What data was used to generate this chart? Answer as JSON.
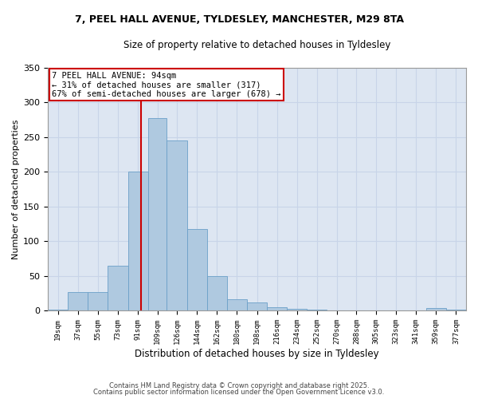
{
  "title_line1": "7, PEEL HALL AVENUE, TYLDESLEY, MANCHESTER, M29 8TA",
  "title_line2": "Size of property relative to detached houses in Tyldesley",
  "xlabel": "Distribution of detached houses by size in Tyldesley",
  "ylabel": "Number of detached properties",
  "bin_labels": [
    "19sqm",
    "37sqm",
    "55sqm",
    "73sqm",
    "91sqm",
    "109sqm",
    "126sqm",
    "144sqm",
    "162sqm",
    "180sqm",
    "198sqm",
    "216sqm",
    "234sqm",
    "252sqm",
    "270sqm",
    "288sqm",
    "305sqm",
    "323sqm",
    "341sqm",
    "359sqm",
    "377sqm"
  ],
  "bin_edges": [
    10,
    28,
    46,
    64,
    82,
    100,
    117,
    135,
    153,
    171,
    189,
    207,
    225,
    243,
    261,
    279,
    296,
    314,
    332,
    350,
    368,
    386
  ],
  "counts": [
    2,
    27,
    27,
    65,
    200,
    278,
    245,
    118,
    50,
    17,
    12,
    5,
    3,
    2,
    1,
    1,
    1,
    0,
    0,
    4,
    2
  ],
  "bar_color": "#afc9e0",
  "bar_edgecolor": "#6ba0c8",
  "grid_color": "#c8d4e8",
  "bg_color": "#dde6f2",
  "property_size": 94,
  "vline_color": "#cc0000",
  "annotation_text": "7 PEEL HALL AVENUE: 94sqm\n← 31% of detached houses are smaller (317)\n67% of semi-detached houses are larger (678) →",
  "annotation_box_color": "#cc0000",
  "footer_line1": "Contains HM Land Registry data © Crown copyright and database right 2025.",
  "footer_line2": "Contains public sector information licensed under the Open Government Licence v3.0.",
  "ylim": [
    0,
    350
  ],
  "yticks": [
    0,
    50,
    100,
    150,
    200,
    250,
    300,
    350
  ]
}
